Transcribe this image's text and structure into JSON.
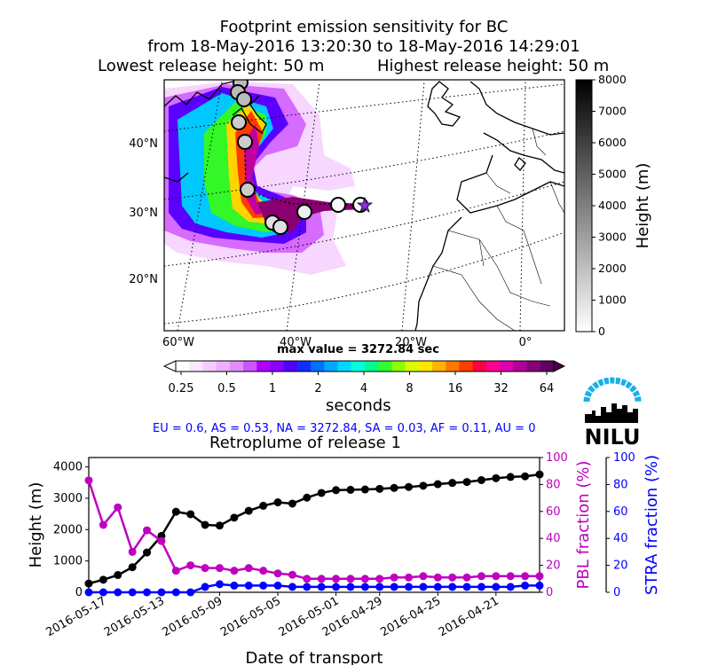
{
  "header": {
    "title_line1": "Footprint emission sensitivity for BC",
    "title_line2": "from 18-May-2016 13:20:30 to 18-May-2016 14:29:01",
    "lowest_release": "Lowest release height: 50 m",
    "highest_release": "Highest release height: 50 m"
  },
  "map": {
    "lon_labels": [
      "60°W",
      "40°W",
      "20°W",
      "0°"
    ],
    "lat_labels": [
      "40°N",
      "30°N",
      "20°N"
    ],
    "height_colorbar": {
      "label": "Height (m)",
      "ticks": [
        0,
        1000,
        2000,
        3000,
        4000,
        5000,
        6000,
        7000,
        8000
      ]
    },
    "max_value": "max value = 3272.84 sec",
    "sensitivity_colorbar": {
      "unit": "seconds",
      "ticks": [
        "0.25",
        "0.5",
        "1",
        "2",
        "4",
        "8",
        "16",
        "32",
        "64"
      ]
    }
  },
  "regions_text": "EU = 0.6,  AS = 0.53,  NA = 3272.84,  SA = 0.03,  AF = 0.11,  AU = 0",
  "logo_text": "NILU",
  "colors": {
    "height": "#000000",
    "pbl": "#bf00bf",
    "stra": "#0000ff"
  },
  "chart_data": {
    "type": "line",
    "title": "Retroplume of release 1",
    "xlabel": "Date of transport",
    "ylabel": "Height (m)",
    "ylabel_right1": "PBL fraction (%)",
    "ylabel_right2": "STRA fraction (%)",
    "ylim": [
      0,
      4300
    ],
    "ylim_right": [
      0,
      100
    ],
    "x_tick_labels": [
      "2016-05-17",
      "2016-05-13",
      "2016-05-09",
      "2016-05-05",
      "2016-05-01",
      "2016-04-29",
      "2016-04-25",
      "2016-04-21"
    ],
    "y_ticks": [
      0,
      1000,
      2000,
      3000,
      4000
    ],
    "y_right_ticks": [
      0,
      20,
      40,
      60,
      80,
      100
    ],
    "series": [
      {
        "name": "Height (m)",
        "axis": "left",
        "values": [
          280,
          400,
          550,
          800,
          1270,
          1800,
          2570,
          2490,
          2150,
          2130,
          2380,
          2600,
          2760,
          2870,
          2830,
          3020,
          3170,
          3260,
          3270,
          3280,
          3300,
          3330,
          3360,
          3400,
          3450,
          3490,
          3520,
          3580,
          3640,
          3680,
          3700,
          3760
        ]
      },
      {
        "name": "PBL fraction (%)",
        "axis": "right1",
        "values": [
          83,
          50,
          63,
          30,
          46,
          38,
          16,
          20,
          18,
          18,
          16,
          18,
          16,
          14,
          13,
          10,
          10,
          10,
          10,
          10,
          10,
          11,
          11,
          12,
          11,
          11,
          11,
          12,
          12,
          12,
          12,
          12
        ]
      },
      {
        "name": "STRA fraction (%)",
        "axis": "right2",
        "values": [
          0,
          0,
          0,
          0,
          0,
          0,
          0,
          0,
          4,
          6,
          5,
          5,
          5,
          5,
          4,
          4,
          4,
          4,
          4,
          4,
          4,
          4,
          4,
          4,
          4,
          4,
          4,
          4,
          4,
          4,
          5,
          5
        ]
      }
    ]
  }
}
